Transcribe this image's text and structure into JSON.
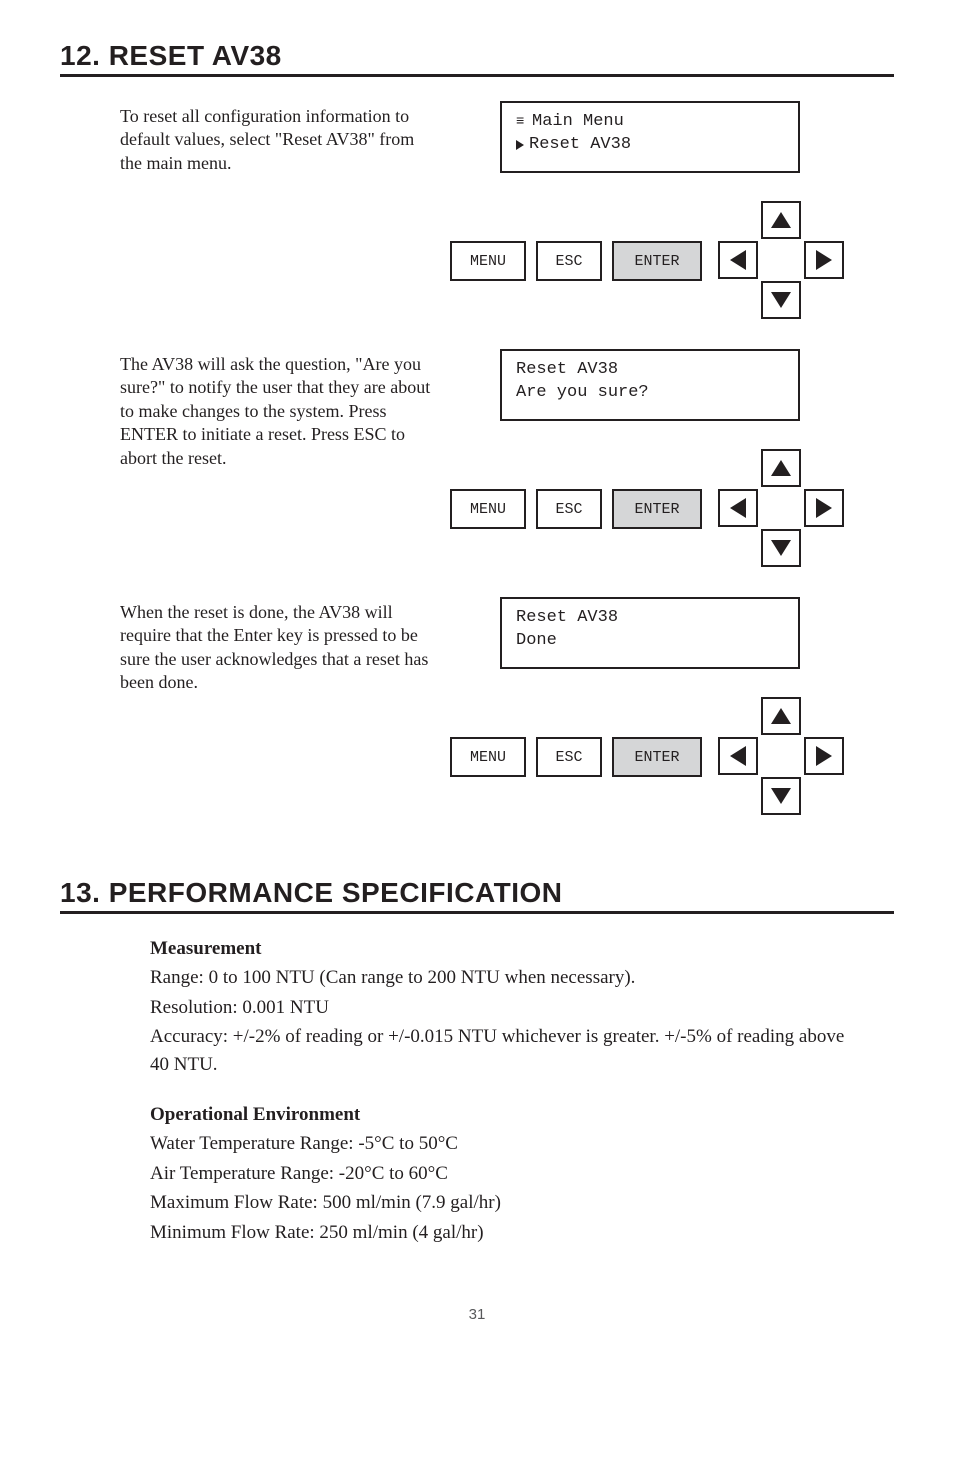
{
  "section12": {
    "title": "12. RESET AV38",
    "steps": [
      {
        "text": "To reset all configuration information to default values, select \"Reset AV38\" from the main menu.",
        "screen": {
          "line1_prefix": "menu",
          "line1": "Main Menu",
          "line2_prefix": "cursor",
          "line2": "Reset AV38"
        }
      },
      {
        "text": "The AV38 will ask the question, \"Are you sure?\" to notify the user that they are about to make changes to the system.  Press ENTER to initiate a reset.  Press ESC to abort the reset.",
        "screen": {
          "line1": " Reset AV38",
          "line2": " Are you sure?"
        }
      },
      {
        "text": "When the reset is done, the AV38 will require that the Enter key is pressed to be sure the user acknowledges that a reset has been done.",
        "screen": {
          "line1": " Reset AV38",
          "line2": " Done"
        }
      }
    ],
    "buttons": {
      "menu": "MENU",
      "esc": "ESC",
      "enter": "ENTER"
    }
  },
  "section13": {
    "title": "13. PERFORMANCE SPECIFICATION",
    "groups": [
      {
        "heading": "Measurement",
        "lines": [
          "Range: 0 to 100 NTU  (Can range to 200 NTU when necessary).",
          "Resolution: 0.001 NTU",
          "Accuracy: +/-2% of reading or +/-0.015 NTU whichever is greater.  +/-5% of reading above 40 NTU."
        ]
      },
      {
        "heading": "Operational Environment",
        "lines": [
          "Water Temperature Range: -5°C to 50°C",
          "Air Temperature Range: -20°C to 60°C",
          "Maximum Flow Rate: 500 ml/min (7.9 gal/hr)",
          "Minimum Flow Rate: 250 ml/min (4 gal/hr)"
        ]
      }
    ]
  },
  "pageNumber": "31"
}
